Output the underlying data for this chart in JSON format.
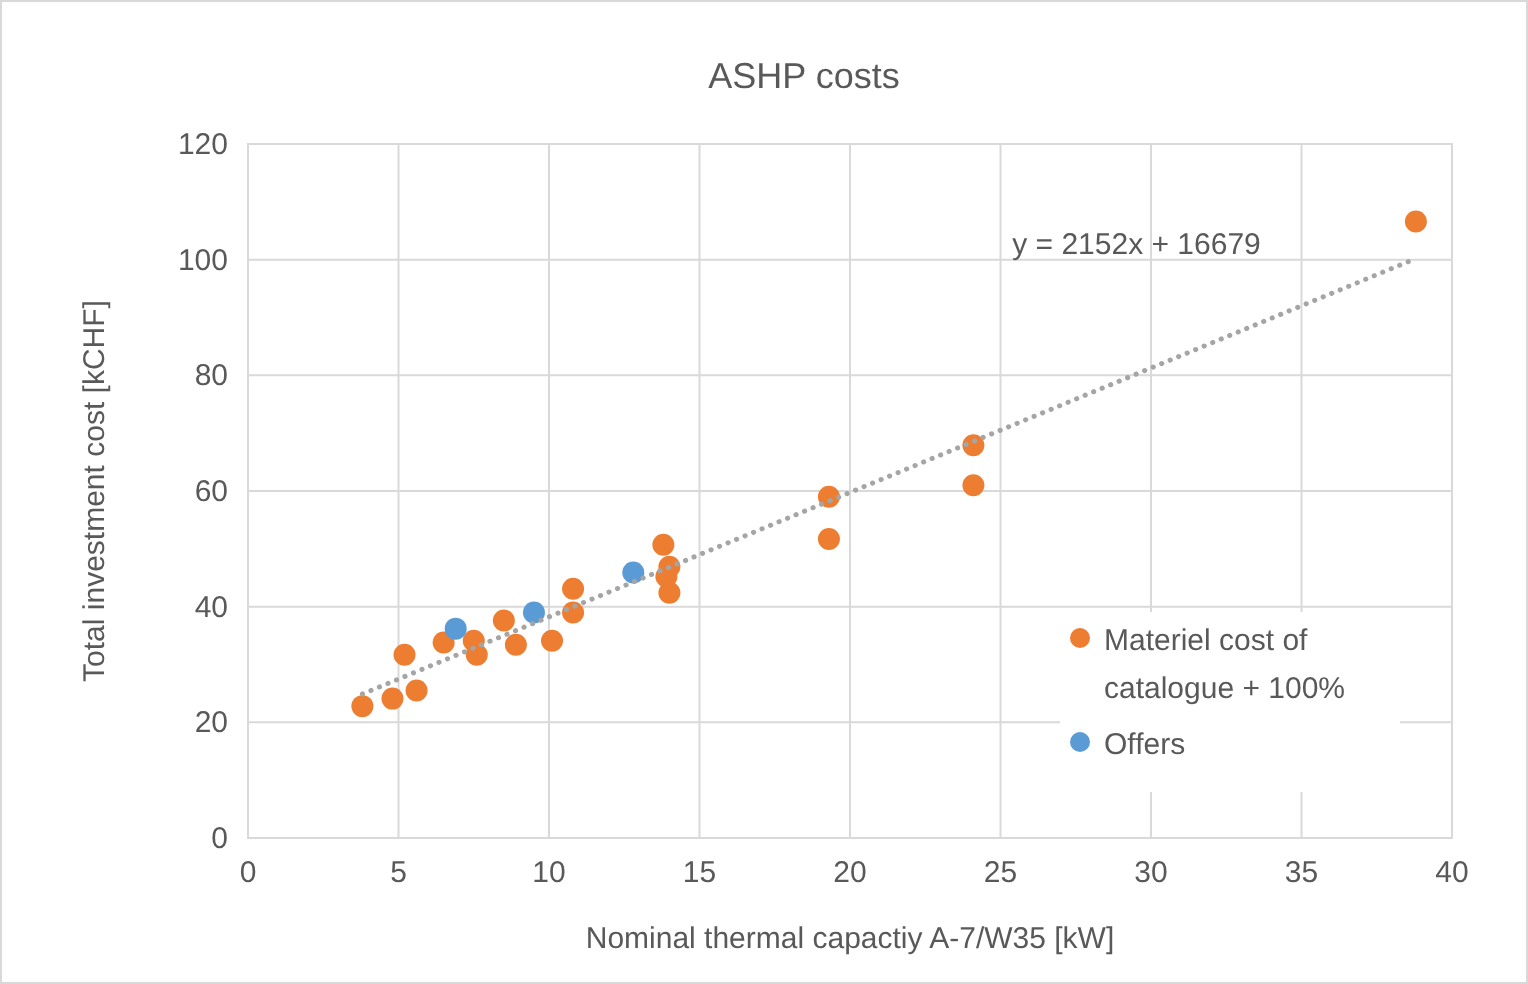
{
  "chart_data": {
    "type": "scatter",
    "title": "ASHP costs",
    "xlabel": "Nominal thermal capactiy A-7/W35 [kW]",
    "ylabel": "Total investment cost [kCHF]",
    "xlim": [
      0,
      40
    ],
    "xticks": [
      0,
      5,
      10,
      15,
      20,
      25,
      30,
      35,
      40
    ],
    "ylim": [
      0,
      120
    ],
    "yticks": [
      0,
      20,
      40,
      60,
      80,
      100,
      120
    ],
    "grid": true,
    "legend": "right",
    "marker": "circle",
    "series": [
      {
        "name": "Materiel cost of catalogue + 100%",
        "color": "#ed7d31",
        "x": [
          3.8,
          4.8,
          5.6,
          5.2,
          6.5,
          7.5,
          7.6,
          8.5,
          8.9,
          10.1,
          10.8,
          10.8,
          13.8,
          14.0,
          13.9,
          14.0,
          19.3,
          19.3,
          24.1,
          24.1,
          38.8
        ],
        "values": [
          22.8,
          24.1,
          25.5,
          31.7,
          33.8,
          34.1,
          31.7,
          37.6,
          33.4,
          34.1,
          43.1,
          39,
          50.7,
          46.9,
          45.2,
          42.4,
          51.7,
          59,
          67.9,
          61,
          106.6
        ]
      },
      {
        "name": "Offers",
        "color": "#5b9bd5",
        "x": [
          6.9,
          9.5,
          12.8
        ],
        "values": [
          36.2,
          39,
          45.9
        ]
      },
      {
        "type": "line",
        "color": "#a5a5a5",
        "line_style": "dotted",
        "marker": "none",
        "x": [
          3.8,
          38.8
        ],
        "values": [
          24.9,
          100.2
        ]
      }
    ],
    "annotations": [
      "y = 2152x + 16679"
    ]
  }
}
